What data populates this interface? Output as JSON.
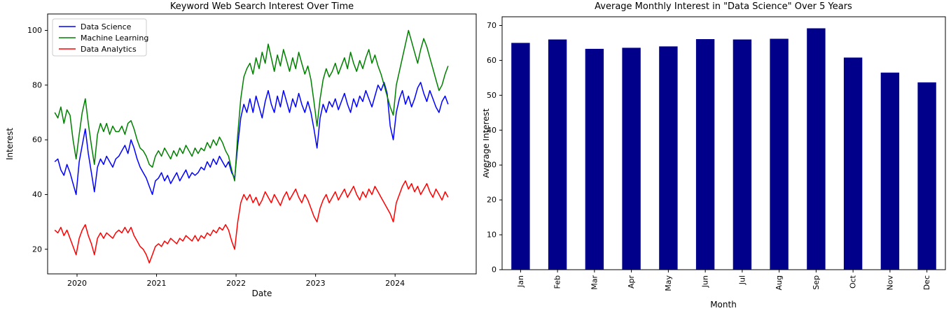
{
  "chart_data": [
    {
      "type": "line",
      "title": "Keyword Web Search Interest Over Time",
      "xlabel": "Date",
      "ylabel": "Interest",
      "x_tick_labels": [
        "2020",
        "2021",
        "2022",
        "2023",
        "2024"
      ],
      "x_tick_years": [
        2020,
        2021,
        2022,
        2023,
        2024
      ],
      "y_ticks": [
        20,
        40,
        60,
        80,
        100
      ],
      "xlim": [
        2019.63,
        2025.02
      ],
      "ylim": [
        11,
        106
      ],
      "grid": false,
      "legend_position": "upper left",
      "x_start": 2019.72,
      "x_step": 0.03835,
      "series": [
        {
          "name": "Data Science",
          "color": "#0000ff",
          "values": [
            52,
            53,
            49,
            47,
            51,
            48,
            44,
            40,
            52,
            58,
            64,
            55,
            48,
            41,
            50,
            53,
            51,
            54,
            52,
            50,
            53,
            54,
            56,
            58,
            55,
            60,
            57,
            53,
            50,
            48,
            46,
            43,
            40,
            45,
            46,
            48,
            45,
            47,
            44,
            46,
            48,
            45,
            47,
            49,
            46,
            48,
            47,
            48,
            50,
            49,
            52,
            50,
            53,
            51,
            54,
            52,
            50,
            52,
            48,
            46,
            58,
            68,
            73,
            70,
            75,
            70,
            76,
            72,
            68,
            74,
            78,
            73,
            70,
            76,
            72,
            78,
            74,
            70,
            75,
            72,
            77,
            73,
            70,
            74,
            70,
            64,
            57,
            68,
            73,
            70,
            74,
            72,
            75,
            71,
            74,
            77,
            73,
            70,
            75,
            72,
            76,
            74,
            78,
            75,
            72,
            76,
            80,
            78,
            81,
            77,
            65,
            60,
            70,
            75,
            78,
            73,
            76,
            72,
            75,
            79,
            81,
            77,
            74,
            78,
            75,
            72,
            70,
            74,
            76,
            73
          ]
        },
        {
          "name": "Machine Learning",
          "color": "#008000",
          "values": [
            70,
            68,
            72,
            66,
            71,
            69,
            60,
            53,
            62,
            70,
            75,
            66,
            58,
            51,
            62,
            66,
            63,
            66,
            62,
            65,
            63,
            63,
            65,
            62,
            66,
            67,
            64,
            60,
            57,
            56,
            54,
            51,
            50,
            54,
            56,
            54,
            57,
            55,
            53,
            56,
            54,
            57,
            55,
            58,
            56,
            54,
            57,
            55,
            57,
            56,
            59,
            57,
            60,
            58,
            61,
            59,
            56,
            54,
            49,
            45,
            62,
            75,
            83,
            86,
            88,
            84,
            90,
            86,
            92,
            88,
            95,
            90,
            85,
            91,
            87,
            93,
            89,
            85,
            90,
            86,
            92,
            88,
            84,
            87,
            82,
            74,
            65,
            75,
            82,
            86,
            83,
            85,
            88,
            84,
            87,
            90,
            86,
            92,
            88,
            85,
            89,
            86,
            90,
            93,
            88,
            91,
            87,
            84,
            80,
            76,
            72,
            69,
            80,
            85,
            90,
            95,
            100,
            96,
            92,
            88,
            93,
            97,
            94,
            90,
            86,
            82,
            78,
            80,
            84,
            87
          ]
        },
        {
          "name": "Data Analytics",
          "color": "#ff0000",
          "values": [
            27,
            26,
            28,
            25,
            27,
            24,
            21,
            18,
            24,
            27,
            29,
            25,
            22,
            18,
            24,
            26,
            24,
            26,
            25,
            24,
            26,
            27,
            26,
            28,
            26,
            28,
            25,
            23,
            21,
            20,
            18,
            15,
            18,
            21,
            22,
            21,
            23,
            22,
            24,
            23,
            22,
            24,
            23,
            25,
            24,
            23,
            25,
            23,
            25,
            24,
            26,
            25,
            27,
            26,
            28,
            27,
            29,
            27,
            23,
            20,
            30,
            37,
            40,
            38,
            40,
            37,
            39,
            36,
            38,
            41,
            39,
            37,
            40,
            38,
            36,
            39,
            41,
            38,
            40,
            42,
            39,
            37,
            40,
            38,
            35,
            32,
            30,
            35,
            38,
            40,
            37,
            39,
            41,
            38,
            40,
            42,
            39,
            41,
            43,
            40,
            38,
            41,
            39,
            42,
            40,
            43,
            41,
            39,
            37,
            35,
            33,
            30,
            37,
            40,
            43,
            45,
            42,
            44,
            41,
            43,
            40,
            42,
            44,
            41,
            39,
            42,
            40,
            38,
            41,
            39
          ]
        }
      ]
    },
    {
      "type": "bar",
      "title": "Average Monthly Interest in \"Data Science\" Over 5 Years",
      "xlabel": "Month",
      "ylabel": "Average Interest",
      "categories": [
        "Jan",
        "Feb",
        "Mar",
        "Apr",
        "May",
        "Jun",
        "Jul",
        "Aug",
        "Sep",
        "Oct",
        "Nov",
        "Dec"
      ],
      "values": [
        65.0,
        66.0,
        63.3,
        63.6,
        64.0,
        66.1,
        66.0,
        66.2,
        69.2,
        60.8,
        56.5,
        53.7
      ],
      "y_ticks": [
        0,
        10,
        20,
        30,
        40,
        50,
        60,
        70
      ],
      "ylim": [
        0,
        72.5
      ],
      "grid": false,
      "bar_color": "#00008B",
      "bar_width_fraction": 0.5
    }
  ]
}
